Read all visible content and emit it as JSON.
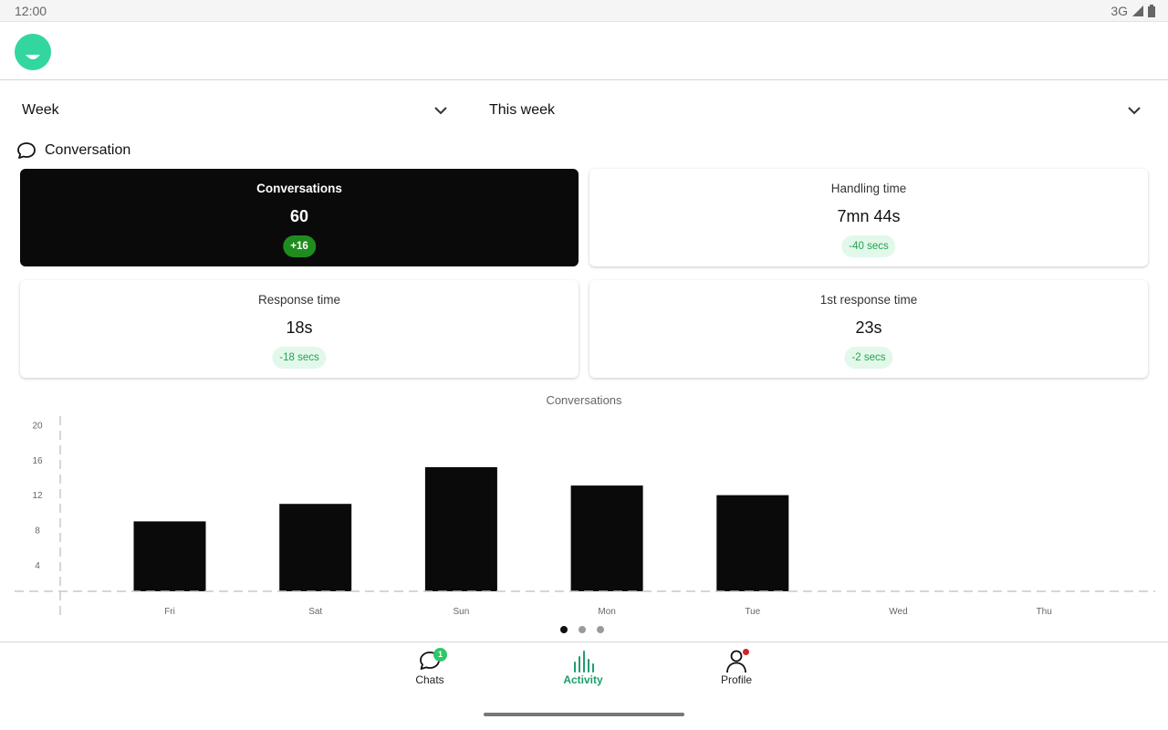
{
  "status_bar": {
    "time": "12:00",
    "network": "3G"
  },
  "filters": {
    "period": "Week",
    "range": "This week"
  },
  "section": {
    "title": "Conversation"
  },
  "cards": [
    {
      "label": "Conversations",
      "value": "60",
      "delta": "+16"
    },
    {
      "label": "Handling time",
      "value": "7mn 44s",
      "delta": "-40 secs"
    },
    {
      "label": "Response time",
      "value": "18s",
      "delta": "-18 secs"
    },
    {
      "label": "1st response time",
      "value": "23s",
      "delta": "-2 secs"
    }
  ],
  "chart_data": {
    "type": "bar",
    "title": "Conversations",
    "categories": [
      "Fri",
      "Sat",
      "Sun",
      "Mon",
      "Tue",
      "Wed",
      "Thu"
    ],
    "values": [
      9,
      11,
      15.2,
      13.1,
      12,
      0,
      0
    ],
    "yticks": [
      4,
      8,
      12,
      16,
      20
    ],
    "ylim": [
      1,
      20
    ],
    "grid": false,
    "bar_color": "#0a0a0a"
  },
  "pager": {
    "count": 3,
    "active": 0
  },
  "nav": {
    "chats": {
      "label": "Chats",
      "badge": "1"
    },
    "activity": {
      "label": "Activity"
    },
    "profile": {
      "label": "Profile"
    }
  },
  "colors": {
    "brand": "#33d69f",
    "accent": "#1e9e6a",
    "positive": "#23a34f",
    "alert": "#d32222"
  }
}
